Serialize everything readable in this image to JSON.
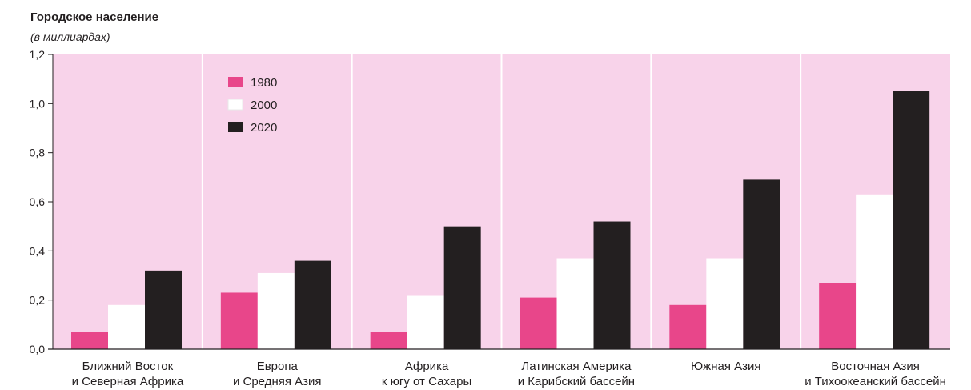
{
  "chart_data": {
    "type": "bar",
    "title": "Городское население",
    "subtitle": "(в миллиардах)",
    "categories": [
      [
        "Ближний Восток",
        "и Северная Африка"
      ],
      [
        "Европа",
        "и Средняя Азия"
      ],
      [
        "Африка",
        "к югу от Сахары"
      ],
      [
        "Латинская Америка",
        "и Карибский бассейн"
      ],
      [
        "Южная Азия"
      ],
      [
        "Восточная Азия",
        "и Тихоокеанский бассейн"
      ]
    ],
    "series": [
      {
        "name": "1980",
        "color": "#e8468a",
        "values": [
          0.07,
          0.23,
          0.07,
          0.21,
          0.18,
          0.27
        ]
      },
      {
        "name": "2000",
        "color": "#ffffff",
        "values": [
          0.18,
          0.31,
          0.22,
          0.37,
          0.37,
          0.63
        ]
      },
      {
        "name": "2020",
        "color": "#231f20",
        "values": [
          0.32,
          0.36,
          0.5,
          0.52,
          0.69,
          1.05
        ]
      }
    ],
    "ylim": [
      0,
      1.2
    ],
    "yticks": [
      "0,0",
      "0,2",
      "0,4",
      "0,6",
      "0,8",
      "1,0",
      "1,2"
    ],
    "ytick_values": [
      0,
      0.2,
      0.4,
      0.6,
      0.8,
      1.0,
      1.2
    ],
    "legend_position": "top-left",
    "background_color": "#f8d3ea",
    "separator_color": "#ffffff",
    "grid": false
  }
}
